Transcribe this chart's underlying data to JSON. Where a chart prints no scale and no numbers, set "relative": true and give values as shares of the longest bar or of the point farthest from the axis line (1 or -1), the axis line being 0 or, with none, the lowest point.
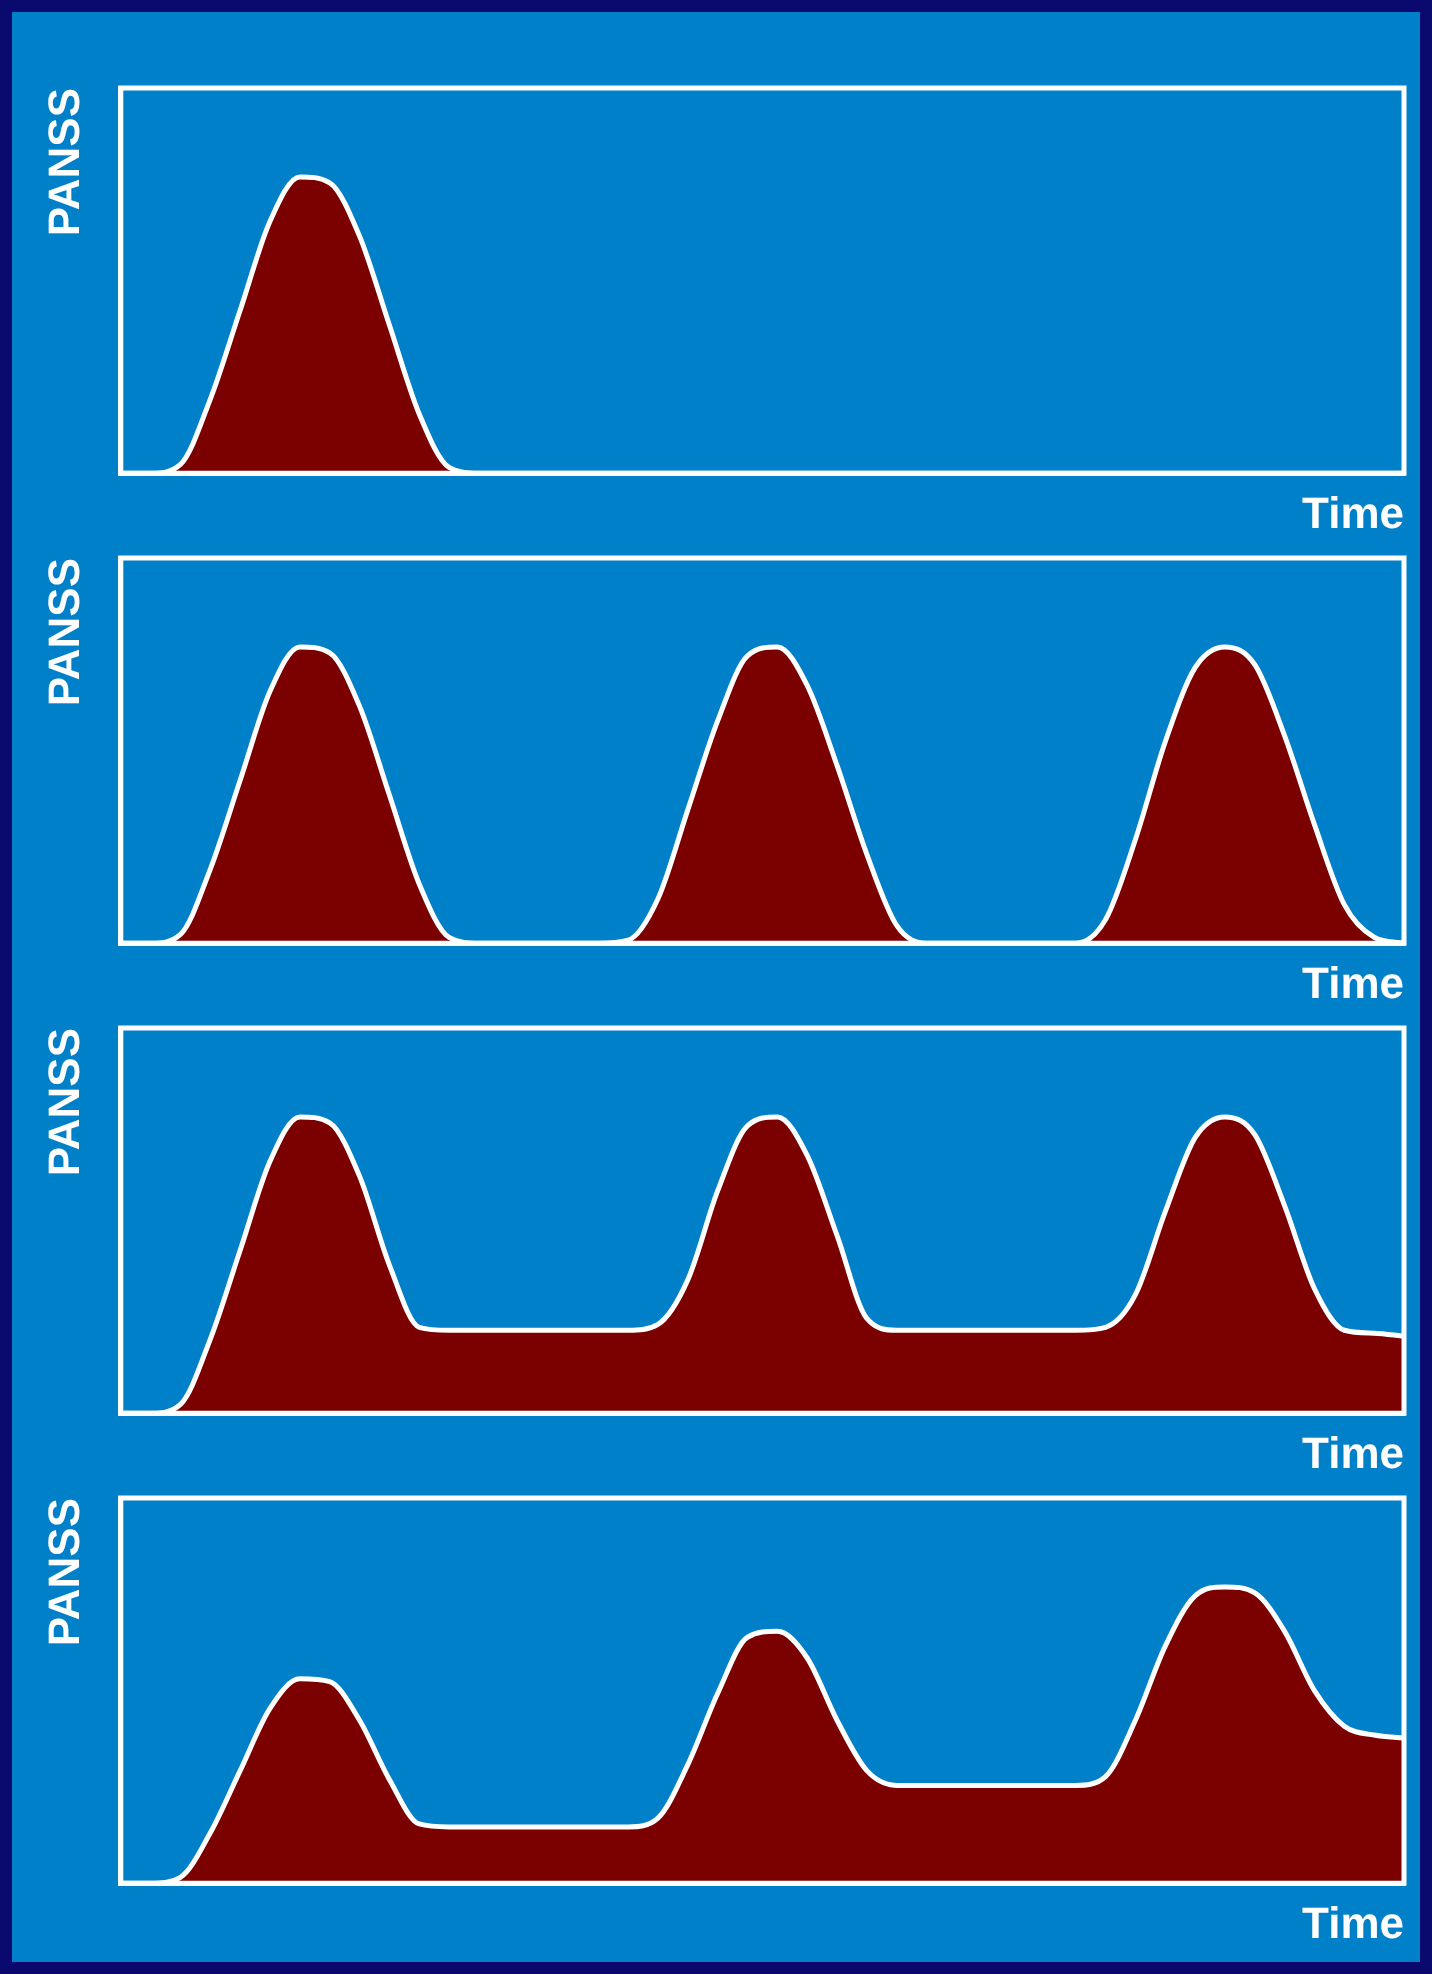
{
  "chart_data": [
    {
      "type": "area",
      "ylabel": "PANSS",
      "xlabel": "Time",
      "relative": true,
      "categories": [
        null,
        null,
        null,
        null,
        null,
        null,
        null,
        null,
        null,
        null,
        null,
        null,
        null,
        null,
        null,
        null,
        null,
        null,
        null,
        null,
        null,
        null,
        null,
        null,
        null,
        null,
        null,
        null,
        null,
        null,
        null,
        null,
        null,
        null,
        null,
        null,
        null,
        null,
        null,
        null,
        null,
        null,
        null,
        null
      ],
      "color": "#7b0000",
      "values": [
        0,
        0,
        0.03,
        0.25,
        0.55,
        0.85,
        1,
        0.98,
        0.8,
        0.5,
        0.2,
        0.02,
        0,
        0,
        0,
        0,
        0,
        0,
        0,
        0,
        0,
        0,
        0,
        0,
        0,
        0,
        0,
        0,
        0,
        0,
        0,
        0,
        0,
        0,
        0,
        0,
        0,
        0,
        0,
        0,
        0,
        0,
        0,
        0
      ]
    },
    {
      "type": "area",
      "ylabel": "PANSS",
      "xlabel": "Time",
      "relative": true,
      "categories": [
        null,
        null,
        null,
        null,
        null,
        null,
        null,
        null,
        null,
        null,
        null,
        null,
        null,
        null,
        null,
        null,
        null,
        null,
        null,
        null,
        null,
        null,
        null,
        null,
        null,
        null,
        null,
        null,
        null,
        null,
        null,
        null,
        null,
        null,
        null,
        null,
        null,
        null,
        null,
        null,
        null,
        null,
        null,
        null
      ],
      "color": "#7b0000",
      "values": [
        0,
        0,
        0.03,
        0.25,
        0.55,
        0.85,
        1,
        0.98,
        0.8,
        0.5,
        0.2,
        0.02,
        0,
        0,
        0,
        0,
        0,
        0.01,
        0.15,
        0.45,
        0.75,
        0.97,
        1,
        0.87,
        0.6,
        0.3,
        0.06,
        0,
        0,
        0,
        0,
        0,
        0,
        0.08,
        0.35,
        0.68,
        0.93,
        1,
        0.94,
        0.7,
        0.4,
        0.13,
        0.02,
        0
      ]
    },
    {
      "type": "area",
      "ylabel": "PANSS",
      "xlabel": "Time",
      "relative": true,
      "categories": [
        null,
        null,
        null,
        null,
        null,
        null,
        null,
        null,
        null,
        null,
        null,
        null,
        null,
        null,
        null,
        null,
        null,
        null,
        null,
        null,
        null,
        null,
        null,
        null,
        null,
        null,
        null,
        null,
        null,
        null,
        null,
        null,
        null,
        null,
        null,
        null,
        null,
        null,
        null,
        null,
        null,
        null,
        null,
        null
      ],
      "color": "#7b0000",
      "values": [
        0,
        0,
        0.03,
        0.25,
        0.55,
        0.85,
        1,
        0.98,
        0.8,
        0.5,
        0.29,
        0.28,
        0.28,
        0.28,
        0.28,
        0.28,
        0.28,
        0.28,
        0.3,
        0.45,
        0.75,
        0.97,
        1,
        0.87,
        0.6,
        0.32,
        0.28,
        0.28,
        0.28,
        0.28,
        0.28,
        0.28,
        0.28,
        0.29,
        0.4,
        0.68,
        0.93,
        1,
        0.94,
        0.7,
        0.42,
        0.28,
        0.27,
        0.26
      ]
    },
    {
      "type": "area",
      "ylabel": "PANSS",
      "xlabel": "Time",
      "relative": true,
      "categories": [
        null,
        null,
        null,
        null,
        null,
        null,
        null,
        null,
        null,
        null,
        null,
        null,
        null,
        null,
        null,
        null,
        null,
        null,
        null,
        null,
        null,
        null,
        null,
        null,
        null,
        null,
        null,
        null,
        null,
        null,
        null,
        null,
        null,
        null,
        null,
        null,
        null,
        null,
        null,
        null,
        null,
        null,
        null,
        null
      ],
      "color": "#7b0000",
      "values": [
        0,
        0,
        0.02,
        0.17,
        0.38,
        0.59,
        0.69,
        0.68,
        0.55,
        0.35,
        0.2,
        0.19,
        0.19,
        0.19,
        0.19,
        0.19,
        0.19,
        0.19,
        0.22,
        0.4,
        0.64,
        0.83,
        0.85,
        0.76,
        0.55,
        0.38,
        0.33,
        0.33,
        0.33,
        0.33,
        0.33,
        0.33,
        0.33,
        0.36,
        0.55,
        0.8,
        0.97,
        1,
        0.98,
        0.85,
        0.65,
        0.53,
        0.5,
        0.49
      ]
    }
  ]
}
